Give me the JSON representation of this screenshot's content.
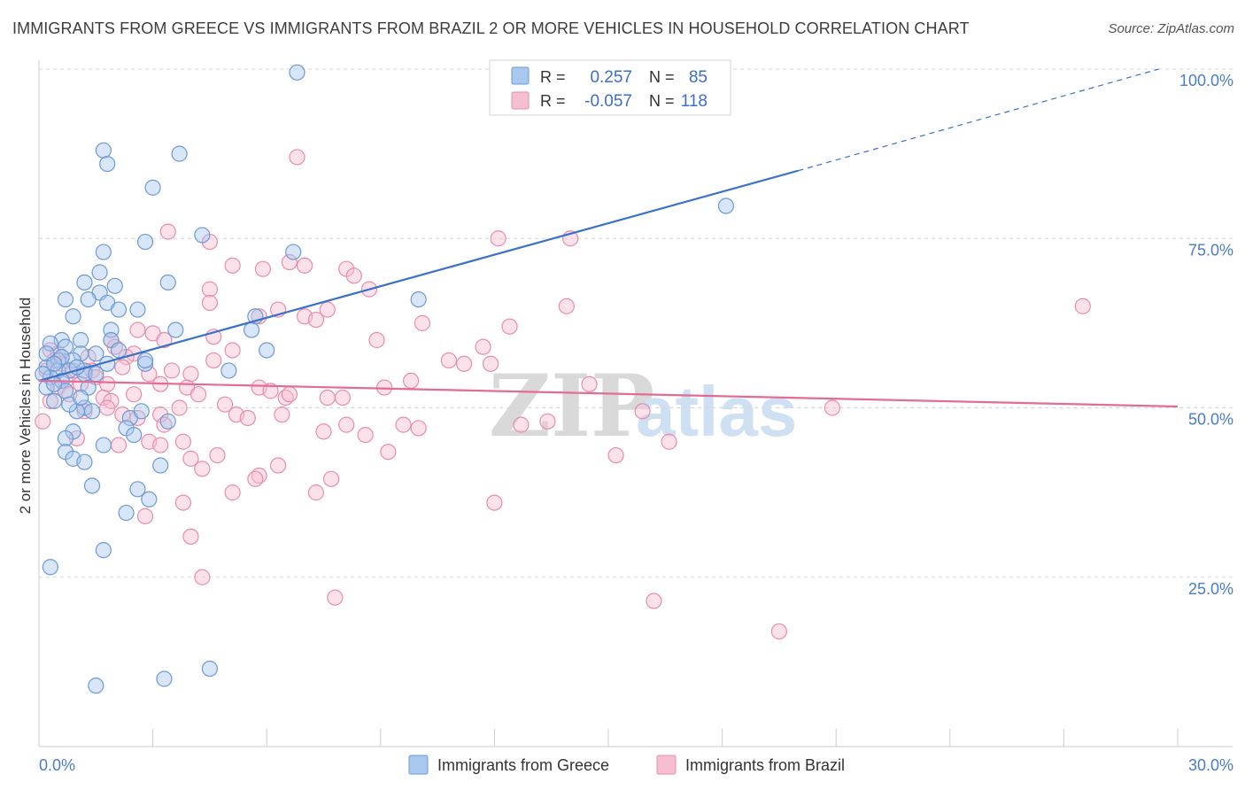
{
  "header": {
    "title": "IMMIGRANTS FROM GREECE VS IMMIGRANTS FROM BRAZIL 2 OR MORE VEHICLES IN HOUSEHOLD CORRELATION CHART",
    "source": "Source: ZipAtlas.com"
  },
  "watermark": {
    "zip": "ZIP",
    "atlas": "atlas"
  },
  "legend": {
    "r_label": "R =",
    "n_label": "N =",
    "greece_r": "0.257",
    "greece_n": "85",
    "brazil_r": "-0.057",
    "brazil_n": "118"
  },
  "bottom_legend": {
    "greece": "Immigrants from Greece",
    "brazil": "Immigrants from Brazil"
  },
  "colors": {
    "greece_fill": "#a9c8ee",
    "greece_stroke": "#6d9ad6",
    "greece_line": "#3a72c9",
    "brazil_fill": "#f6bfd1",
    "brazil_stroke": "#e98cab",
    "brazil_line": "#e46b96",
    "grid": "#d8d8d8",
    "tick_label": "#4a7cc9"
  },
  "chart_data": {
    "type": "scatter",
    "title": "IMMIGRANTS FROM GREECE VS IMMIGRANTS FROM BRAZIL 2 OR MORE VEHICLES IN HOUSEHOLD CORRELATION CHART",
    "xlabel": "",
    "ylabel": "2 or more Vehicles in Household",
    "xlim": [
      0,
      30
    ],
    "ylim": [
      0,
      100
    ],
    "x_tick_labels": [
      "0.0%",
      "30.0%"
    ],
    "y_ticks": [
      25,
      50,
      75,
      100
    ],
    "y_tick_labels": [
      "25.0%",
      "50.0%",
      "75.0%",
      "100.0%"
    ],
    "grid": true,
    "legend_position": "top-center",
    "series": [
      {
        "name": "Immigrants from Greece",
        "r": 0.257,
        "n": 85,
        "trend": {
          "x": [
            0.0,
            20.0
          ],
          "y": [
            54.0,
            85.0
          ],
          "dashed_to_x": 29.5,
          "dashed_to_y": 100.0
        },
        "points": [
          [
            6.8,
            99.5
          ],
          [
            1.7,
            88.0
          ],
          [
            1.8,
            86.0
          ],
          [
            3.7,
            87.5
          ],
          [
            3.0,
            82.5
          ],
          [
            18.1,
            79.8
          ],
          [
            2.8,
            74.5
          ],
          [
            1.7,
            73.0
          ],
          [
            4.3,
            75.5
          ],
          [
            6.7,
            73.0
          ],
          [
            1.6,
            70.0
          ],
          [
            1.2,
            68.5
          ],
          [
            2.0,
            68.0
          ],
          [
            1.6,
            67.0
          ],
          [
            3.4,
            68.5
          ],
          [
            0.7,
            66.0
          ],
          [
            1.3,
            66.0
          ],
          [
            1.8,
            65.5
          ],
          [
            2.1,
            64.5
          ],
          [
            2.6,
            64.5
          ],
          [
            0.9,
            63.5
          ],
          [
            5.7,
            63.5
          ],
          [
            10.0,
            66.0
          ],
          [
            1.9,
            61.5
          ],
          [
            3.6,
            61.5
          ],
          [
            5.6,
            61.5
          ],
          [
            0.6,
            60.0
          ],
          [
            1.1,
            60.0
          ],
          [
            1.9,
            60.0
          ],
          [
            0.3,
            59.5
          ],
          [
            0.7,
            59.0
          ],
          [
            1.5,
            58.0
          ],
          [
            1.1,
            58.0
          ],
          [
            6.0,
            58.5
          ],
          [
            0.5,
            57.0
          ],
          [
            0.9,
            57.0
          ],
          [
            1.8,
            56.5
          ],
          [
            0.2,
            56.0
          ],
          [
            0.5,
            55.5
          ],
          [
            0.8,
            55.5
          ],
          [
            1.2,
            55.5
          ],
          [
            2.8,
            56.5
          ],
          [
            2.8,
            57.0
          ],
          [
            5.0,
            55.5
          ],
          [
            1.2,
            55.0
          ],
          [
            0.3,
            54.5
          ],
          [
            0.6,
            54.0
          ],
          [
            0.2,
            53.0
          ],
          [
            0.7,
            52.5
          ],
          [
            0.4,
            51.0
          ],
          [
            1.2,
            50.0
          ],
          [
            1.4,
            49.5
          ],
          [
            1.0,
            49.5
          ],
          [
            2.4,
            48.5
          ],
          [
            3.4,
            48.0
          ],
          [
            2.3,
            47.0
          ],
          [
            0.9,
            46.5
          ],
          [
            2.5,
            46.0
          ],
          [
            0.7,
            45.5
          ],
          [
            1.7,
            44.5
          ],
          [
            0.7,
            43.5
          ],
          [
            0.9,
            42.5
          ],
          [
            1.2,
            42.0
          ],
          [
            3.2,
            41.5
          ],
          [
            1.4,
            38.5
          ],
          [
            2.6,
            38.0
          ],
          [
            2.9,
            36.5
          ],
          [
            2.3,
            34.5
          ],
          [
            1.7,
            29.0
          ],
          [
            0.3,
            26.5
          ],
          [
            4.5,
            11.5
          ],
          [
            3.3,
            10.0
          ],
          [
            1.5,
            9.0
          ],
          [
            0.1,
            55.0
          ],
          [
            0.2,
            58.0
          ],
          [
            0.4,
            53.5
          ],
          [
            1.0,
            56.0
          ],
          [
            0.6,
            57.5
          ],
          [
            1.5,
            55.0
          ],
          [
            2.1,
            58.5
          ],
          [
            1.3,
            53.0
          ],
          [
            0.8,
            50.5
          ],
          [
            2.7,
            49.5
          ],
          [
            1.1,
            51.5
          ],
          [
            0.4,
            56.5
          ]
        ]
      },
      {
        "name": "Immigrants from Brazil",
        "r": -0.057,
        "n": 118,
        "trend": {
          "x": [
            0.0,
            30.0
          ],
          "y": [
            54.0,
            50.2
          ]
        },
        "points": [
          [
            6.8,
            87.0
          ],
          [
            3.4,
            76.0
          ],
          [
            12.1,
            75.0
          ],
          [
            14.0,
            75.0
          ],
          [
            4.5,
            74.5
          ],
          [
            5.1,
            71.0
          ],
          [
            5.9,
            70.5
          ],
          [
            6.6,
            71.5
          ],
          [
            7.0,
            71.0
          ],
          [
            8.1,
            70.5
          ],
          [
            8.3,
            69.5
          ],
          [
            4.5,
            67.5
          ],
          [
            8.7,
            67.5
          ],
          [
            4.5,
            65.5
          ],
          [
            6.3,
            64.5
          ],
          [
            7.6,
            64.5
          ],
          [
            13.9,
            65.0
          ],
          [
            27.5,
            65.0
          ],
          [
            5.8,
            63.5
          ],
          [
            7.0,
            63.5
          ],
          [
            7.3,
            63.0
          ],
          [
            10.1,
            62.5
          ],
          [
            12.4,
            62.0
          ],
          [
            2.6,
            61.5
          ],
          [
            3.0,
            61.0
          ],
          [
            1.9,
            60.0
          ],
          [
            3.3,
            60.0
          ],
          [
            4.6,
            60.5
          ],
          [
            8.9,
            60.0
          ],
          [
            0.3,
            58.5
          ],
          [
            0.5,
            58.0
          ],
          [
            2.5,
            58.0
          ],
          [
            5.1,
            58.5
          ],
          [
            11.7,
            59.0
          ],
          [
            2.3,
            57.5
          ],
          [
            4.6,
            57.0
          ],
          [
            10.8,
            57.0
          ],
          [
            11.2,
            56.5
          ],
          [
            11.9,
            56.5
          ],
          [
            0.6,
            56.5
          ],
          [
            0.9,
            55.5
          ],
          [
            1.4,
            55.5
          ],
          [
            2.2,
            56.0
          ],
          [
            2.9,
            55.0
          ],
          [
            3.5,
            55.5
          ],
          [
            4.0,
            55.0
          ],
          [
            9.8,
            54.0
          ],
          [
            14.5,
            53.5
          ],
          [
            0.7,
            54.0
          ],
          [
            1.1,
            53.5
          ],
          [
            1.8,
            53.5
          ],
          [
            3.2,
            53.5
          ],
          [
            3.9,
            53.0
          ],
          [
            5.8,
            53.0
          ],
          [
            6.1,
            52.5
          ],
          [
            6.5,
            51.5
          ],
          [
            7.6,
            51.5
          ],
          [
            4.2,
            52.0
          ],
          [
            1.7,
            51.5
          ],
          [
            1.9,
            51.0
          ],
          [
            1.8,
            50.0
          ],
          [
            2.2,
            49.0
          ],
          [
            3.2,
            49.0
          ],
          [
            5.2,
            49.0
          ],
          [
            5.5,
            48.5
          ],
          [
            8.0,
            51.5
          ],
          [
            15.9,
            49.5
          ],
          [
            20.9,
            50.0
          ],
          [
            13.4,
            48.0
          ],
          [
            0.1,
            48.0
          ],
          [
            2.6,
            48.5
          ],
          [
            8.1,
            47.5
          ],
          [
            10.0,
            47.0
          ],
          [
            7.5,
            46.5
          ],
          [
            1.0,
            45.5
          ],
          [
            2.1,
            44.5
          ],
          [
            2.9,
            45.0
          ],
          [
            3.2,
            44.5
          ],
          [
            3.8,
            45.0
          ],
          [
            9.2,
            43.5
          ],
          [
            15.2,
            43.0
          ],
          [
            16.6,
            45.0
          ],
          [
            4.7,
            43.0
          ],
          [
            4.0,
            42.5
          ],
          [
            6.3,
            41.5
          ],
          [
            4.3,
            41.0
          ],
          [
            5.8,
            40.0
          ],
          [
            5.7,
            39.5
          ],
          [
            7.7,
            39.5
          ],
          [
            5.1,
            37.5
          ],
          [
            7.3,
            37.5
          ],
          [
            12.0,
            36.0
          ],
          [
            3.8,
            36.0
          ],
          [
            2.8,
            34.0
          ],
          [
            4.0,
            31.0
          ],
          [
            4.3,
            25.0
          ],
          [
            7.8,
            22.0
          ],
          [
            16.2,
            21.5
          ],
          [
            19.5,
            17.0
          ],
          [
            0.2,
            55.5
          ],
          [
            0.4,
            57.0
          ],
          [
            0.5,
            53.0
          ],
          [
            1.3,
            57.5
          ],
          [
            1.5,
            54.5
          ],
          [
            2.0,
            59.0
          ],
          [
            0.8,
            52.0
          ],
          [
            2.5,
            52.0
          ],
          [
            3.7,
            50.0
          ],
          [
            6.4,
            49.0
          ],
          [
            8.6,
            46.0
          ],
          [
            3.3,
            47.5
          ],
          [
            12.7,
            47.5
          ],
          [
            9.6,
            47.5
          ],
          [
            1.2,
            49.5
          ],
          [
            0.3,
            51.0
          ],
          [
            6.6,
            52.0
          ],
          [
            4.9,
            50.5
          ],
          [
            9.1,
            53.0
          ]
        ]
      }
    ]
  }
}
